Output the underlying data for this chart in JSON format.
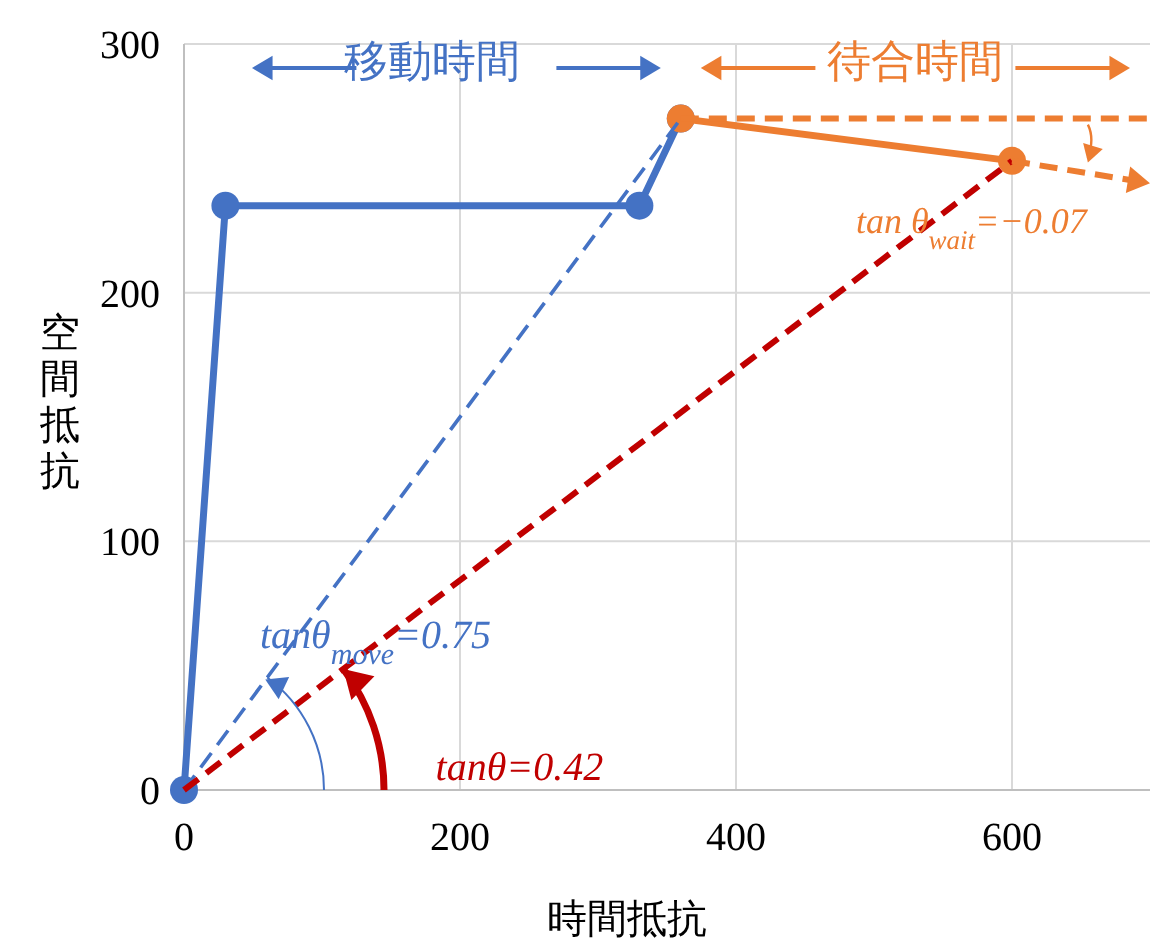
{
  "chart_data": {
    "type": "line",
    "xlabel": "時間抵抗",
    "ylabel": "空間抵抗",
    "xlim": [
      0,
      700
    ],
    "ylim": [
      0,
      300
    ],
    "xticks": [
      0,
      200,
      400,
      600
    ],
    "yticks": [
      0,
      100,
      200,
      300
    ],
    "grid": true,
    "series": [
      {
        "color": "#4472c4",
        "x": [
          0,
          30,
          330,
          360
        ],
        "values": [
          0,
          235,
          235,
          270
        ],
        "marker": "circle",
        "line_style": "solid"
      },
      {
        "color": "#ed7d31",
        "x": [
          360,
          600
        ],
        "values": [
          270,
          253
        ],
        "marker": "circle",
        "line_style": "solid"
      },
      {
        "color": "#4472c4",
        "x": [
          0,
          360
        ],
        "values": [
          0,
          270
        ],
        "marker": "none",
        "line_style": "dashed"
      },
      {
        "color": "#c00000",
        "x": [
          0,
          600
        ],
        "values": [
          0,
          253
        ],
        "marker": "none",
        "line_style": "dashed"
      },
      {
        "color": "#ed7d31",
        "x": [
          360,
          700
        ],
        "values": [
          270,
          270
        ],
        "marker": "none",
        "line_style": "dashed"
      },
      {
        "color": "#ed7d31",
        "x": [
          600,
          700
        ],
        "values": [
          253,
          244
        ],
        "marker": "none",
        "line_style": "dashed"
      }
    ],
    "annotations": [
      "移動時間",
      "待合時間",
      {
        "text": "tanθ$_{move}$=0.75",
        "x": 100,
        "y": 75
      },
      {
        "text": "tanθ=0.42",
        "x": 120,
        "y": 50
      },
      {
        "text": "tan θ$_{wait}$=−0.07",
        "x": 655,
        "y": 249
      }
    ]
  }
}
